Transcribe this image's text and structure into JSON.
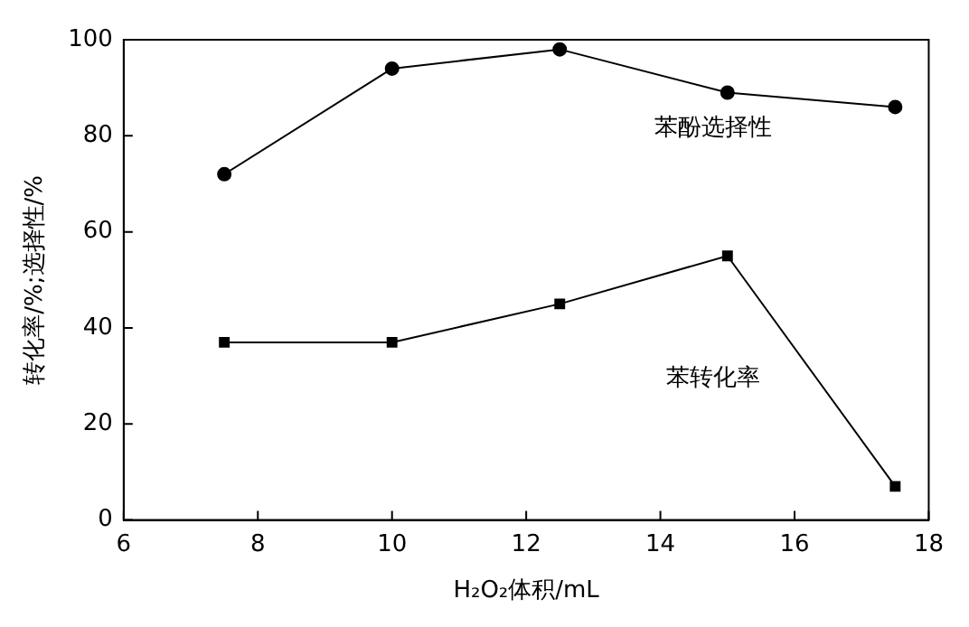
{
  "chart_data": {
    "type": "line",
    "xlabel": "H₂O₂体积/mL",
    "ylabel": "转化率/%;选择性/%",
    "x": [
      7.5,
      10,
      12.5,
      15,
      17.5
    ],
    "series": [
      {
        "name": "苯酚选择性",
        "color": "#000000",
        "marker": "circle",
        "values": [
          72,
          94,
          98,
          89,
          86
        ]
      },
      {
        "name": "苯转化率",
        "color": "#000000",
        "marker": "square",
        "values": [
          37,
          37,
          45,
          55,
          7
        ]
      }
    ],
    "xlim": [
      6,
      18
    ],
    "xticks": [
      6,
      8,
      10,
      12,
      14,
      16,
      18
    ],
    "ylim": [
      0,
      100
    ],
    "yticks": [
      0,
      20,
      40,
      60,
      80,
      100
    ],
    "grid": false,
    "legend": false
  }
}
